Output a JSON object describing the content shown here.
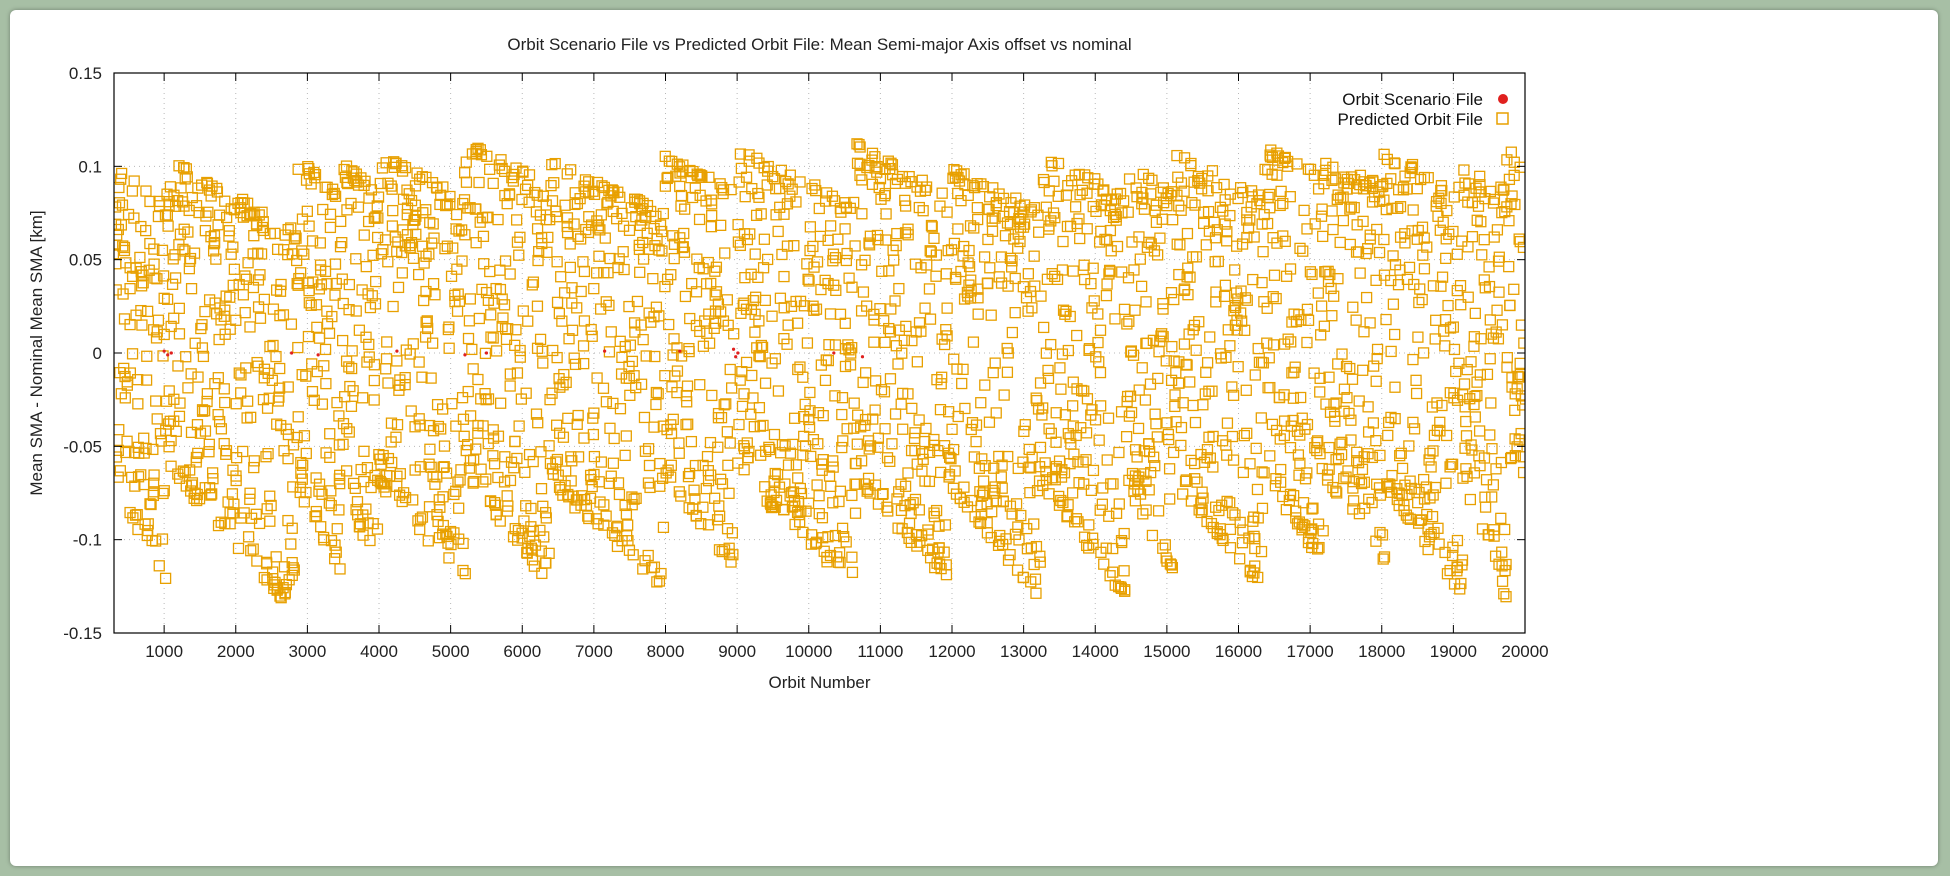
{
  "chart_data": {
    "type": "scatter",
    "title": "Orbit Scenario File vs Predicted Orbit File: Mean Semi-major Axis offset vs nominal",
    "xlabel": "Orbit Number",
    "ylabel": "Mean SMA - Nominal Mean SMA [km]",
    "xlim": [
      300,
      20000
    ],
    "ylim": [
      -0.15,
      0.15
    ],
    "xticks": [
      1000,
      2000,
      3000,
      4000,
      5000,
      6000,
      7000,
      8000,
      9000,
      10000,
      11000,
      12000,
      13000,
      14000,
      15000,
      16000,
      17000,
      18000,
      19000,
      20000
    ],
    "xtick_labels": [
      "1000",
      "2000",
      "3000",
      "4000",
      "5000",
      "6000",
      "7000",
      "8000",
      "9000",
      "10000",
      "11000",
      "12000",
      "13000",
      "14000",
      "15000",
      "16000",
      "17000",
      "18000",
      "19000",
      "20000"
    ],
    "yticks": [
      -0.15,
      -0.1,
      -0.05,
      0,
      0.05,
      0.1,
      0.15
    ],
    "ytick_labels": [
      "-0.15",
      "-0.1",
      "-0.05",
      "0",
      "0.05",
      "0.1",
      "0.15"
    ],
    "grid": true,
    "legend_position": "top-right",
    "series": [
      {
        "name": "Orbit Scenario File",
        "marker": "filled-circle",
        "color": "#e0201e",
        "points": [
          [
            1000,
            0.001
          ],
          [
            1050,
            -0.001
          ],
          [
            1100,
            0.0
          ],
          [
            2780,
            0.0
          ],
          [
            3150,
            -0.001
          ],
          [
            4250,
            0.001
          ],
          [
            5200,
            -0.001
          ],
          [
            5500,
            0.0
          ],
          [
            7150,
            0.001
          ],
          [
            8200,
            0.001
          ],
          [
            8950,
            0.002
          ],
          [
            8980,
            -0.002
          ],
          [
            9010,
            0.0
          ],
          [
            10350,
            0.0
          ],
          [
            10750,
            -0.002
          ]
        ]
      },
      {
        "name": "Predicted Orbit File",
        "marker": "open-square",
        "color": "#e8a000",
        "segments": [
          {
            "x_start": 300,
            "x_end": 1020,
            "top_start": 0.1,
            "top_end": 0.08,
            "bottom_start": -0.07,
            "bottom_end": -0.122
          },
          {
            "x_start": 1020,
            "x_end": 2850,
            "top_start": 0.105,
            "top_end": 0.066,
            "bottom_start": -0.06,
            "bottom_end": -0.14
          },
          {
            "x_start": 2850,
            "x_end": 3450,
            "top_start": 0.103,
            "top_end": 0.09,
            "bottom_start": -0.07,
            "bottom_end": -0.118
          },
          {
            "x_start": 3450,
            "x_end": 4000,
            "top_start": 0.103,
            "top_end": 0.09,
            "bottom_start": -0.07,
            "bottom_end": -0.118
          },
          {
            "x_start": 4000,
            "x_end": 5200,
            "top_start": 0.107,
            "top_end": 0.083,
            "bottom_start": -0.07,
            "bottom_end": -0.122
          },
          {
            "x_start": 5200,
            "x_end": 6400,
            "top_start": 0.114,
            "top_end": 0.09,
            "bottom_start": -0.065,
            "bottom_end": -0.125
          },
          {
            "x_start": 6400,
            "x_end": 7980,
            "top_start": 0.103,
            "top_end": 0.076,
            "bottom_start": -0.07,
            "bottom_end": -0.128
          },
          {
            "x_start": 7980,
            "x_end": 8950,
            "top_start": 0.106,
            "top_end": 0.088,
            "bottom_start": -0.065,
            "bottom_end": -0.115
          },
          {
            "x_start": 9000,
            "x_end": 10650,
            "top_start": 0.11,
            "top_end": 0.08,
            "bottom_start": -0.065,
            "bottom_end": -0.127
          },
          {
            "x_start": 10650,
            "x_end": 11950,
            "top_start": 0.113,
            "top_end": 0.085,
            "bottom_start": -0.07,
            "bottom_end": -0.123
          },
          {
            "x_start": 11950,
            "x_end": 13250,
            "top_start": 0.1,
            "top_end": 0.076,
            "bottom_start": -0.07,
            "bottom_end": -0.133
          },
          {
            "x_start": 13250,
            "x_end": 14450,
            "top_start": 0.107,
            "top_end": 0.085,
            "bottom_start": -0.07,
            "bottom_end": -0.133
          },
          {
            "x_start": 14450,
            "x_end": 15100,
            "top_start": 0.1,
            "top_end": 0.087,
            "bottom_start": -0.07,
            "bottom_end": -0.12
          },
          {
            "x_start": 15100,
            "x_end": 16350,
            "top_start": 0.108,
            "top_end": 0.084,
            "bottom_start": -0.07,
            "bottom_end": -0.126
          },
          {
            "x_start": 16350,
            "x_end": 17200,
            "top_start": 0.111,
            "top_end": 0.095,
            "bottom_start": -0.065,
            "bottom_end": -0.114
          },
          {
            "x_start": 17200,
            "x_end": 18050,
            "top_start": 0.104,
            "top_end": 0.09,
            "bottom_start": -0.065,
            "bottom_end": -0.114
          },
          {
            "x_start": 18050,
            "x_end": 19150,
            "top_start": 0.108,
            "top_end": 0.088,
            "bottom_start": -0.07,
            "bottom_end": -0.134
          },
          {
            "x_start": 19150,
            "x_end": 19750,
            "top_start": 0.1,
            "top_end": 0.087,
            "bottom_start": -0.07,
            "bottom_end": -0.133
          },
          {
            "x_start": 19750,
            "x_end": 20000,
            "top_start": 0.109,
            "top_end": 0.104,
            "bottom_start": -0.055,
            "bottom_end": -0.065
          }
        ]
      }
    ]
  }
}
